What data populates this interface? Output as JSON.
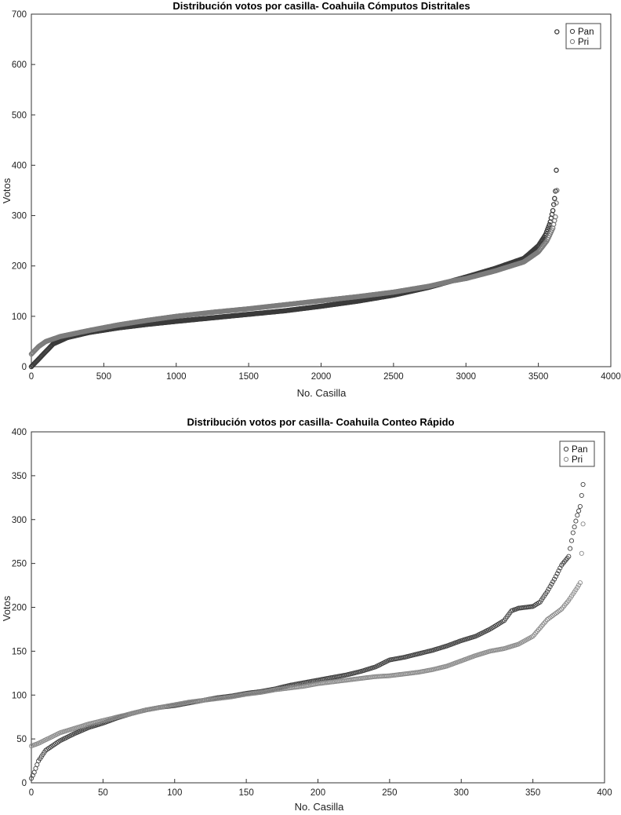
{
  "chart_data": [
    {
      "type": "scatter",
      "title": "Distribución votos por casilla- Coahuila Cómputos Distritales",
      "xlabel": "No. Casilla",
      "ylabel": "Votos",
      "xlim": [
        0,
        4000
      ],
      "ylim": [
        0,
        700
      ],
      "xticks": [
        0,
        500,
        1000,
        1500,
        2000,
        2500,
        3000,
        3500,
        4000
      ],
      "yticks": [
        0,
        100,
        200,
        300,
        400,
        500,
        600,
        700
      ],
      "grid": false,
      "legend_position": "top-right",
      "marker": "open-circle",
      "point_count": 3630,
      "series": [
        {
          "name": "Pan",
          "color": "#3a3a3a",
          "curve": [
            [
              0,
              0
            ],
            [
              50,
              15
            ],
            [
              100,
              30
            ],
            [
              150,
              45
            ],
            [
              250,
              58
            ],
            [
              400,
              68
            ],
            [
              600,
              77
            ],
            [
              800,
              84
            ],
            [
              1000,
              90
            ],
            [
              1250,
              97
            ],
            [
              1500,
              104
            ],
            [
              1750,
              111
            ],
            [
              2000,
              120
            ],
            [
              2250,
              130
            ],
            [
              2500,
              142
            ],
            [
              2750,
              158
            ],
            [
              3000,
              178
            ],
            [
              3200,
              195
            ],
            [
              3400,
              215
            ],
            [
              3500,
              240
            ],
            [
              3550,
              262
            ],
            [
              3580,
              285
            ],
            [
              3600,
              310
            ],
            [
              3615,
              340
            ],
            [
              3622,
              360
            ],
            [
              3625,
              405
            ],
            [
              3628,
              665
            ]
          ]
        },
        {
          "name": "Pri",
          "color": "#7c7c7c",
          "curve": [
            [
              0,
              25
            ],
            [
              50,
              40
            ],
            [
              100,
              50
            ],
            [
              200,
              60
            ],
            [
              400,
              72
            ],
            [
              600,
              83
            ],
            [
              800,
              92
            ],
            [
              1000,
              100
            ],
            [
              1250,
              108
            ],
            [
              1500,
              115
            ],
            [
              1750,
              123
            ],
            [
              2000,
              131
            ],
            [
              2250,
              139
            ],
            [
              2500,
              148
            ],
            [
              2750,
              160
            ],
            [
              2900,
              170
            ],
            [
              3000,
              175
            ],
            [
              3200,
              190
            ],
            [
              3400,
              208
            ],
            [
              3500,
              228
            ],
            [
              3560,
              250
            ],
            [
              3600,
              275
            ],
            [
              3620,
              300
            ],
            [
              3628,
              350
            ]
          ]
        }
      ]
    },
    {
      "type": "scatter",
      "title": "Distribución votos por casilla- Coahuila Conteo Rápido",
      "xlabel": "No. Casilla",
      "ylabel": "Votos",
      "xlim": [
        0,
        400
      ],
      "ylim": [
        0,
        400
      ],
      "xticks": [
        0,
        50,
        100,
        150,
        200,
        250,
        300,
        350,
        400
      ],
      "yticks": [
        0,
        50,
        100,
        150,
        200,
        250,
        300,
        350,
        400
      ],
      "grid": false,
      "legend_position": "top-right",
      "marker": "open-circle",
      "point_count": 385,
      "series": [
        {
          "name": "Pan",
          "color": "#404040",
          "curve": [
            [
              0,
              5
            ],
            [
              2,
              12
            ],
            [
              5,
              25
            ],
            [
              10,
              37
            ],
            [
              20,
              48
            ],
            [
              30,
              56
            ],
            [
              40,
              63
            ],
            [
              50,
              68
            ],
            [
              60,
              74
            ],
            [
              70,
              79
            ],
            [
              80,
              83
            ],
            [
              90,
              86
            ],
            [
              100,
              88
            ],
            [
              110,
              91
            ],
            [
              120,
              94
            ],
            [
              130,
              97
            ],
            [
              140,
              99
            ],
            [
              150,
              102
            ],
            [
              160,
              104
            ],
            [
              170,
              107
            ],
            [
              180,
              111
            ],
            [
              190,
              114
            ],
            [
              200,
              117
            ],
            [
              210,
              120
            ],
            [
              220,
              123
            ],
            [
              230,
              127
            ],
            [
              240,
              132
            ],
            [
              245,
              136
            ],
            [
              250,
              140
            ],
            [
              260,
              143
            ],
            [
              270,
              147
            ],
            [
              280,
              151
            ],
            [
              290,
              156
            ],
            [
              300,
              162
            ],
            [
              310,
              167
            ],
            [
              320,
              175
            ],
            [
              330,
              185
            ],
            [
              335,
              196
            ],
            [
              340,
              199
            ],
            [
              350,
              201
            ],
            [
              355,
              206
            ],
            [
              360,
              218
            ],
            [
              365,
              232
            ],
            [
              370,
              248
            ],
            [
              375,
              258
            ],
            [
              378,
              285
            ],
            [
              381,
              305
            ],
            [
              383,
              315
            ],
            [
              385,
              340
            ]
          ]
        },
        {
          "name": "Pri",
          "color": "#8a8a8a",
          "curve": [
            [
              0,
              42
            ],
            [
              5,
              45
            ],
            [
              10,
              49
            ],
            [
              20,
              57
            ],
            [
              30,
              62
            ],
            [
              40,
              67
            ],
            [
              50,
              71
            ],
            [
              60,
              75
            ],
            [
              70,
              79
            ],
            [
              80,
              83
            ],
            [
              90,
              86
            ],
            [
              100,
              89
            ],
            [
              110,
              92
            ],
            [
              120,
              94
            ],
            [
              130,
              96
            ],
            [
              140,
              98
            ],
            [
              150,
              101
            ],
            [
              160,
              103
            ],
            [
              170,
              106
            ],
            [
              180,
              108
            ],
            [
              190,
              110
            ],
            [
              200,
              113
            ],
            [
              210,
              115
            ],
            [
              220,
              117
            ],
            [
              230,
              119
            ],
            [
              240,
              121
            ],
            [
              250,
              122
            ],
            [
              260,
              124
            ],
            [
              270,
              126
            ],
            [
              280,
              129
            ],
            [
              290,
              133
            ],
            [
              300,
              139
            ],
            [
              310,
              145
            ],
            [
              320,
              150
            ],
            [
              330,
              153
            ],
            [
              340,
              158
            ],
            [
              350,
              167
            ],
            [
              360,
              186
            ],
            [
              370,
              198
            ],
            [
              375,
              208
            ],
            [
              380,
              220
            ],
            [
              383,
              228
            ],
            [
              385,
              295
            ]
          ]
        }
      ]
    }
  ]
}
